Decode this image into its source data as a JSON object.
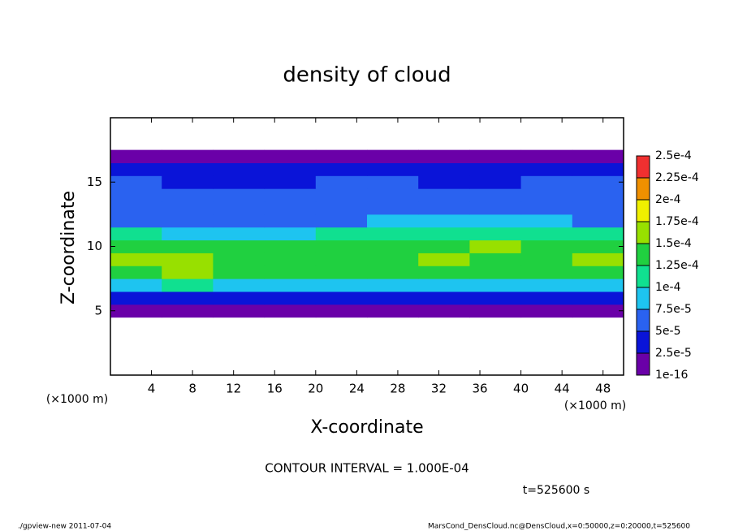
{
  "chart_data": {
    "type": "heatmap",
    "title": "density of cloud",
    "xlabel": "X-coordinate",
    "ylabel": "Z-coordinate",
    "x_unit_label": "(×1000 m)",
    "y_unit_label": "(×1000 m)",
    "xlim": [
      0,
      50
    ],
    "ylim": [
      0,
      20
    ],
    "xticks": [
      4,
      8,
      12,
      16,
      20,
      24,
      28,
      32,
      36,
      40,
      44,
      48
    ],
    "yticks": [
      5,
      10,
      15
    ],
    "x": [
      0,
      5,
      10,
      15,
      20,
      25,
      30,
      35,
      40,
      45,
      50
    ],
    "z": [
      4.5,
      5.5,
      6.5,
      7.5,
      8.5,
      9.5,
      10.5,
      11.5,
      12.5,
      13.5,
      14.5,
      15.5,
      16.5,
      17.5
    ],
    "values": [
      [
        1e-06,
        1e-06,
        1e-06,
        1e-06,
        1e-06,
        1e-06,
        1e-06,
        1e-06,
        1e-06,
        1e-06
      ],
      [
        3e-05,
        4e-05,
        3.5e-05,
        4e-05,
        4e-05,
        3e-05,
        4e-05,
        3.5e-05,
        3e-05,
        4e-05
      ],
      [
        9e-05,
        0.000105,
        9e-05,
        8e-05,
        8.5e-05,
        9e-05,
        9.5e-05,
        9e-05,
        8.5e-05,
        9e-05
      ],
      [
        0.000145,
        0.000155,
        0.00014,
        0.00013,
        0.000135,
        0.00014,
        0.00014,
        0.000135,
        0.00013,
        0.000145
      ],
      [
        0.00016,
        0.00016,
        0.000145,
        0.000135,
        0.00014,
        0.000145,
        0.00015,
        0.000145,
        0.000145,
        0.000155
      ],
      [
        0.000135,
        0.00013,
        0.00013,
        0.000135,
        0.00014,
        0.000145,
        0.000145,
        0.00015,
        0.00014,
        0.000135
      ],
      [
        0.000105,
        9e-05,
        8e-05,
        9e-05,
        0.000105,
        0.00011,
        0.000115,
        0.00012,
        0.00011,
        0.000105
      ],
      [
        7e-05,
        6.5e-05,
        6e-05,
        6.5e-05,
        7e-05,
        7.5e-05,
        8e-05,
        8e-05,
        7.5e-05,
        7e-05
      ],
      [
        6e-05,
        6e-05,
        5.5e-05,
        5.5e-05,
        6e-05,
        6.5e-05,
        6.5e-05,
        6e-05,
        6e-05,
        6e-05
      ],
      [
        5.5e-05,
        5e-05,
        5e-05,
        5e-05,
        5e-05,
        5.5e-05,
        5e-05,
        5e-05,
        5.5e-05,
        5.5e-05
      ],
      [
        5e-05,
        4.5e-05,
        4.5e-05,
        4.5e-05,
        5e-05,
        5e-05,
        4.5e-05,
        4.5e-05,
        5e-05,
        5e-05
      ],
      [
        3e-05,
        3e-05,
        2.5e-05,
        2.5e-05,
        3e-05,
        3e-05,
        3e-05,
        3e-05,
        3e-05,
        3e-05
      ],
      [
        1e-06,
        1e-06,
        1e-06,
        1e-06,
        1e-06,
        1e-06,
        1e-06,
        1e-06,
        1e-06,
        1e-06
      ]
    ],
    "colorbar": {
      "ticks": [
        {
          "value": 1e-16,
          "label": "1e-16"
        },
        {
          "value": 2.5e-05,
          "label": "2.5e-5"
        },
        {
          "value": 5e-05,
          "label": "5e-5"
        },
        {
          "value": 7.5e-05,
          "label": "7.5e-5"
        },
        {
          "value": 0.0001,
          "label": "1e-4"
        },
        {
          "value": 0.000125,
          "label": "1.25e-4"
        },
        {
          "value": 0.00015,
          "label": "1.5e-4"
        },
        {
          "value": 0.000175,
          "label": "1.75e-4"
        },
        {
          "value": 0.0002,
          "label": "2e-4"
        },
        {
          "value": 0.000225,
          "label": "2.25e-4"
        },
        {
          "value": 0.00025,
          "label": "2.5e-4"
        }
      ],
      "colors": [
        "#6a00a8",
        "#0a14d8",
        "#2a62f0",
        "#1ec4f0",
        "#10e090",
        "#20d040",
        "#98e000",
        "#f0f000",
        "#f09000",
        "#f03030"
      ]
    },
    "contour_interval": "CONTOUR INTERVAL = 1.000E-04",
    "time_label": "t=525600 s",
    "footer_left": "./gpview-new  2011-07-04",
    "footer_right": "MarsCond_DensCloud.nc@DensCloud,x=0:50000,z=0:20000,t=525600"
  }
}
